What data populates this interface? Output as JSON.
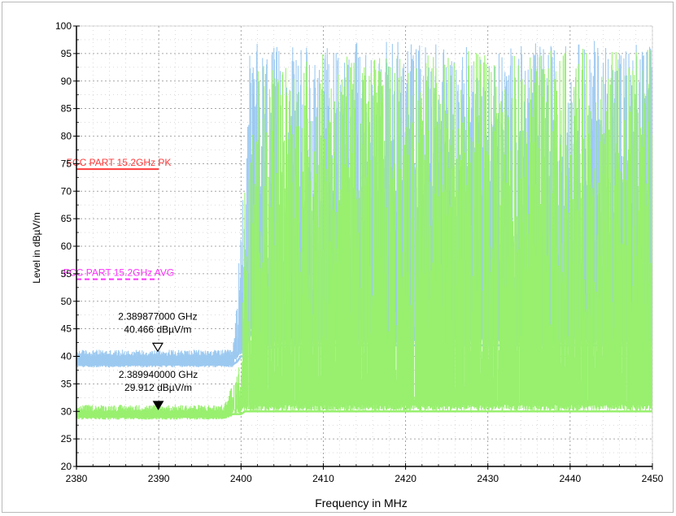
{
  "chart_data": {
    "type": "line",
    "xlabel": "Frequency in MHz",
    "ylabel": "Level in dBµV/m",
    "xlim": [
      2380,
      2450
    ],
    "ylim": [
      20,
      100
    ],
    "x_ticks": [
      2380,
      2390,
      2400,
      2410,
      2420,
      2430,
      2440,
      2450
    ],
    "y_ticks": [
      20,
      25,
      30,
      35,
      40,
      45,
      50,
      55,
      60,
      65,
      70,
      75,
      80,
      85,
      90,
      95,
      100
    ],
    "grid": true,
    "colors": {
      "peak": "#9cc9f0",
      "average": "#98f06e",
      "pk_limit": "#ff3b3b",
      "avg_limit": "#ff33ff"
    },
    "limit_lines": [
      {
        "label": "FCC PART 15.2GHz  PK",
        "y": 74,
        "x_range": [
          2380,
          2390
        ],
        "style": "solid",
        "color": "#ff3b3b"
      },
      {
        "label": "FCC PART 15.2GHz  AVG",
        "y": 54,
        "x_range": [
          2380,
          2390
        ],
        "style": "dashed",
        "color": "#ff33ff"
      }
    ],
    "series": [
      {
        "style": "peak",
        "color": "#9cc9f0",
        "x": [
          2380,
          2399,
          2399.5,
          2400,
          2400.5,
          2401,
          2402,
          2405,
          2410,
          2415,
          2420,
          2425,
          2430,
          2435,
          2440,
          2445,
          2450
        ],
        "y": [
          40,
          40,
          50,
          65,
          80,
          95,
          97,
          96,
          97,
          97,
          98,
          97,
          96,
          97,
          97,
          98,
          97
        ],
        "floor": [
          38.5,
          38.5,
          39,
          40,
          40,
          45,
          41,
          42,
          42,
          42,
          42,
          42,
          42,
          42,
          42,
          42,
          42
        ]
      },
      {
        "style": "average",
        "color": "#98f06e",
        "x": [
          2380,
          2398,
          2399,
          2400,
          2400.5,
          2401,
          2402,
          2405,
          2410,
          2415,
          2420,
          2425,
          2430,
          2435,
          2440,
          2445,
          2450
        ],
        "y": [
          30,
          30,
          34,
          40,
          75,
          90,
          95,
          94,
          95,
          95,
          95,
          96,
          95,
          95,
          96,
          96,
          96
        ],
        "floor": [
          29,
          29,
          29.5,
          29.5,
          30,
          30,
          30,
          30,
          30,
          30,
          30,
          30,
          30,
          30,
          30,
          30,
          30
        ]
      }
    ],
    "markers": [
      {
        "x": 2389.877,
        "y": 40.466,
        "shape": "open-triangle",
        "freq_label": "2.389877000 GHz",
        "level_label": "40.466 dBµV/m"
      },
      {
        "x": 2389.94,
        "y": 29.912,
        "shape": "filled-triangle",
        "freq_label": "2.389940000 GHz",
        "level_label": "29.912 dBµV/m"
      }
    ]
  }
}
